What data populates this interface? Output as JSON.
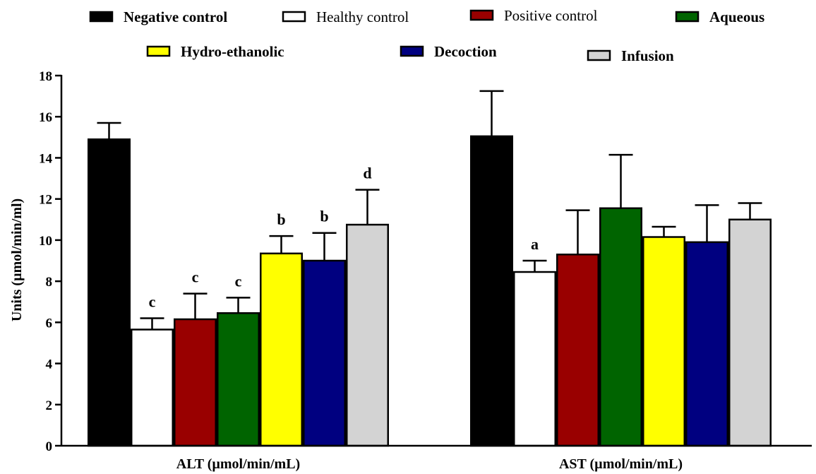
{
  "chart_data": {
    "type": "bar",
    "title": "",
    "xlabel": "",
    "ylabel": "Units (µmol/min/ml)",
    "ylim": [
      0,
      18
    ],
    "yticks": [
      0,
      2,
      4,
      6,
      8,
      10,
      12,
      14,
      16,
      18
    ],
    "grid": false,
    "legend_position": "top",
    "categories": [
      "ALT (µmol/min/mL)",
      "AST (µmol/min/mL)"
    ],
    "series": [
      {
        "name": "Negative control",
        "color": "#000000",
        "values": [
          14.9,
          15.05
        ],
        "errors": [
          0.8,
          2.2
        ],
        "labels": [
          "",
          ""
        ],
        "legend_bold": true
      },
      {
        "name": "Healthy control",
        "color": "#ffffff",
        "values": [
          5.65,
          8.45
        ],
        "errors": [
          0.55,
          0.55
        ],
        "labels": [
          "c",
          "a"
        ],
        "legend_bold": false
      },
      {
        "name": "Positive control",
        "color": "#990000",
        "values": [
          6.15,
          9.3
        ],
        "errors": [
          1.25,
          2.15
        ],
        "labels": [
          "c",
          ""
        ],
        "legend_bold": false
      },
      {
        "name": "Aqueous",
        "color": "#006400",
        "values": [
          6.45,
          11.55
        ],
        "errors": [
          0.75,
          2.6
        ],
        "labels": [
          "c",
          ""
        ],
        "legend_bold": true
      },
      {
        "name": "Hydro-ethanolic",
        "color": "#ffff00",
        "values": [
          9.35,
          10.15
        ],
        "errors": [
          0.85,
          0.5
        ],
        "labels": [
          "b",
          ""
        ],
        "legend_bold": true
      },
      {
        "name": "Decoction",
        "color": "#000080",
        "values": [
          9.0,
          9.9
        ],
        "errors": [
          1.35,
          1.8
        ],
        "labels": [
          "b",
          ""
        ],
        "legend_bold": true
      },
      {
        "name": "Infusion",
        "color": "#d3d3d3",
        "values": [
          10.75,
          11.0
        ],
        "errors": [
          1.7,
          0.8
        ],
        "labels": [
          "d",
          ""
        ],
        "legend_bold": true
      }
    ]
  }
}
